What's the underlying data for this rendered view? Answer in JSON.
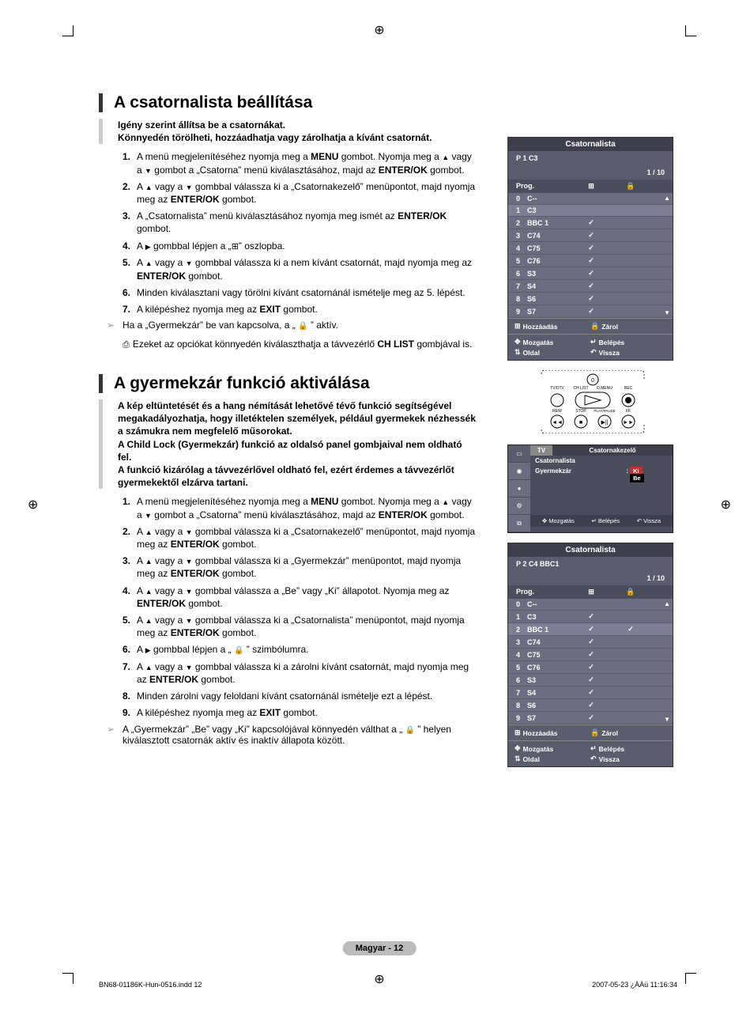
{
  "registration_glyph": "⊕",
  "section1": {
    "title": "A csatornalista beállítása",
    "intro": "Igény szerint állítsa be a csatornákat.\nKönnyedén törölheti, hozzáadhatja vagy zárolhatja a kívánt csatornát.",
    "steps": [
      "A menü megjelenítéséhez nyomja meg a <b>MENU</b> gombot. Nyomja meg a <span class='tri-up'></span> vagy a <span class='tri-down'></span> gombot a „Csatorna” menü kiválasztásához, majd az <b>ENTER/OK</b> gombot.",
      "A <span class='tri-up'></span> vagy a <span class='tri-down'></span> gombbal válassza ki a „Csatornakezelő” menüpontot, majd nyomja meg az <b>ENTER/OK</b> gombot.",
      "A „Csatornalista” menü kiválasztásához nyomja meg ismét az <b>ENTER/OK</b> gombot.",
      "A <span class='tri-right'></span> gombbal lépjen a „<span class='plus-box'></span>” oszlopba.",
      "A <span class='tri-up'></span> vagy a <span class='tri-down'></span> gombbal válassza ki a nem kívánt csatornát, majd nyomja meg az <b>ENTER/OK</b> gombot.",
      "Minden kiválasztani vagy törölni kívánt csatornánál ismételje meg az 5. lépést.",
      "A kilépéshez nyomja meg az <b>EXIT</b> gombot."
    ],
    "note": "Ha a „Gyermekzár” be van kapcsolva, a „ <span class='lock'></span> ” aktív.",
    "info": "Ezeket az opciókat könnyedén kiválaszthatja a távvezérlő <b>CH LIST</b> gombjával is."
  },
  "section2": {
    "title": "A gyermekzár funkció aktiválása",
    "intro": "A kép eltüntetését és a hang némítását lehetővé tévő funkció segítségével megakadályozhatja, hogy illetéktelen személyek, például gyermekek nézhessék a számukra nem megfelelő műsorokat.\nA Child Lock (Gyermekzár) funkció az oldalsó panel gombjaival nem oldható fel.\nA funkció kizárólag a távvezérlővel oldható fel, ezért érdemes a távvezérlőt gyermekektől elzárva tartani.",
    "steps": [
      "A menü megjelenítéséhez nyomja meg a <b>MENU</b> gombot. Nyomja meg a <span class='tri-up'></span> vagy a <span class='tri-down'></span> gombot a „Csatorna” menü kiválasztásához, majd az <b>ENTER/OK</b> gombot.",
      "A <span class='tri-up'></span> vagy a <span class='tri-down'></span> gombbal válassza ki a „Csatornakezelő” menüpontot, majd nyomja meg az <b>ENTER/OK</b> gombot.",
      "A <span class='tri-up'></span> vagy a <span class='tri-down'></span> gombbal válassza ki a „Gyermekzár” menüpontot, majd nyomja meg az <b>ENTER/OK</b> gombot.",
      "A <span class='tri-up'></span> vagy a <span class='tri-down'></span> gombbal válassza a „Be” vagy „Ki” állapotot. Nyomja meg az <b>ENTER/OK</b> gombot.",
      "A <span class='tri-up'></span> vagy a <span class='tri-down'></span> gombbal válassza ki a „Csatornalista” menüpontot, majd nyomja meg az <b>ENTER/OK</b> gombot.",
      "A <span class='tri-right'></span> gombbal lépjen a „ <span class='lock'></span> ” szimbólumra.",
      "A <span class='tri-up'></span> vagy a <span class='tri-down'></span> gombbal válassza ki a zárolni kívánt csatornát, majd nyomja meg az <b>ENTER/OK</b> gombot.",
      "Minden zárolni vagy feloldani kívánt csatornánál ismételje ezt a lépést.",
      "A kilépéshez nyomja meg az <b>EXIT</b> gombot."
    ],
    "note": "A „Gyermekzár” „Be” vagy „Ki” kapcsolójával könnyedén válthat a „ <span class='lock'></span> ” helyen kiválasztott csatornák aktív és inaktív állapota között."
  },
  "osd1": {
    "title": "Csatornalista",
    "current": "P  1  C3",
    "page": "1 / 10",
    "headers": {
      "prog": "Prog.",
      "add": "⊞",
      "lock": "🔒"
    },
    "rows": [
      {
        "idx": "0",
        "name": "C--",
        "sel": false,
        "c1": "",
        "c2": ""
      },
      {
        "idx": "1",
        "name": "C3",
        "sel": true,
        "c1": "",
        "c2": ""
      },
      {
        "idx": "2",
        "name": "BBC 1",
        "sel": false,
        "c1": "✓",
        "c2": ""
      },
      {
        "idx": "3",
        "name": "C74",
        "sel": false,
        "c1": "✓",
        "c2": ""
      },
      {
        "idx": "4",
        "name": "C75",
        "sel": false,
        "c1": "✓",
        "c2": ""
      },
      {
        "idx": "5",
        "name": "C76",
        "sel": false,
        "c1": "✓",
        "c2": ""
      },
      {
        "idx": "6",
        "name": "S3",
        "sel": false,
        "c1": "✓",
        "c2": ""
      },
      {
        "idx": "7",
        "name": "S4",
        "sel": false,
        "c1": "✓",
        "c2": ""
      },
      {
        "idx": "8",
        "name": "S6",
        "sel": false,
        "c1": "✓",
        "c2": ""
      },
      {
        "idx": "9",
        "name": "S7",
        "sel": false,
        "c1": "✓",
        "c2": ""
      }
    ],
    "footer": {
      "add": "Hozzáadás",
      "lock": "Zárol",
      "move": "Mozgatás",
      "enter": "Belépés",
      "page": "Oldal",
      "return": "Vissza"
    }
  },
  "remote": {
    "labels": [
      "TV/DTV",
      "CH LIST",
      "D.MENU",
      "REC",
      "REW",
      "STOP",
      "PLAY/PAUSE",
      "FF"
    ],
    "zero": "0"
  },
  "menu_osd": {
    "tv": "TV",
    "title": "Csatornakezelő",
    "row1": "Csatornalista",
    "row2_label": "Gyermekzár",
    "row2_sep": ":",
    "opt_off": "Ki",
    "opt_on": "Be",
    "footer": {
      "move": "Mozgatás",
      "enter": "Belépés",
      "return": "Vissza"
    }
  },
  "osd2": {
    "title": "Csatornalista",
    "current": "P  2  C4      BBC1",
    "page": "1 / 10",
    "headers": {
      "prog": "Prog.",
      "add": "⊞",
      "lock": "🔒"
    },
    "rows": [
      {
        "idx": "0",
        "name": "C--",
        "sel": false,
        "c1": "",
        "c2": ""
      },
      {
        "idx": "1",
        "name": "C3",
        "sel": false,
        "c1": "✓",
        "c2": ""
      },
      {
        "idx": "2",
        "name": "BBC 1",
        "sel": true,
        "c1": "✓",
        "c2": "✓"
      },
      {
        "idx": "3",
        "name": "C74",
        "sel": false,
        "c1": "✓",
        "c2": ""
      },
      {
        "idx": "4",
        "name": "C75",
        "sel": false,
        "c1": "✓",
        "c2": ""
      },
      {
        "idx": "5",
        "name": "C76",
        "sel": false,
        "c1": "✓",
        "c2": ""
      },
      {
        "idx": "6",
        "name": "S3",
        "sel": false,
        "c1": "✓",
        "c2": ""
      },
      {
        "idx": "7",
        "name": "S4",
        "sel": false,
        "c1": "✓",
        "c2": ""
      },
      {
        "idx": "8",
        "name": "S6",
        "sel": false,
        "c1": "✓",
        "c2": ""
      },
      {
        "idx": "9",
        "name": "S7",
        "sel": false,
        "c1": "✓",
        "c2": ""
      }
    ],
    "footer": {
      "add": "Hozzáadás",
      "lock": "Zárol",
      "move": "Mozgatás",
      "enter": "Belépés",
      "page": "Oldal",
      "return": "Vissza"
    }
  },
  "pagenum": "Magyar -  12",
  "file": "BN68-01186K-Hun-0516.indd   12",
  "date": "2007-05-23   ¿ÀÀü 11:16:34",
  "colors": {
    "osd_bg": "#5a5d6e",
    "osd_dark": "#3d3f4d",
    "osd_row": "#6b6e80",
    "osd_sel": "#7d8094",
    "accent_bar": "#333333",
    "light_bar": "#cccccc"
  }
}
